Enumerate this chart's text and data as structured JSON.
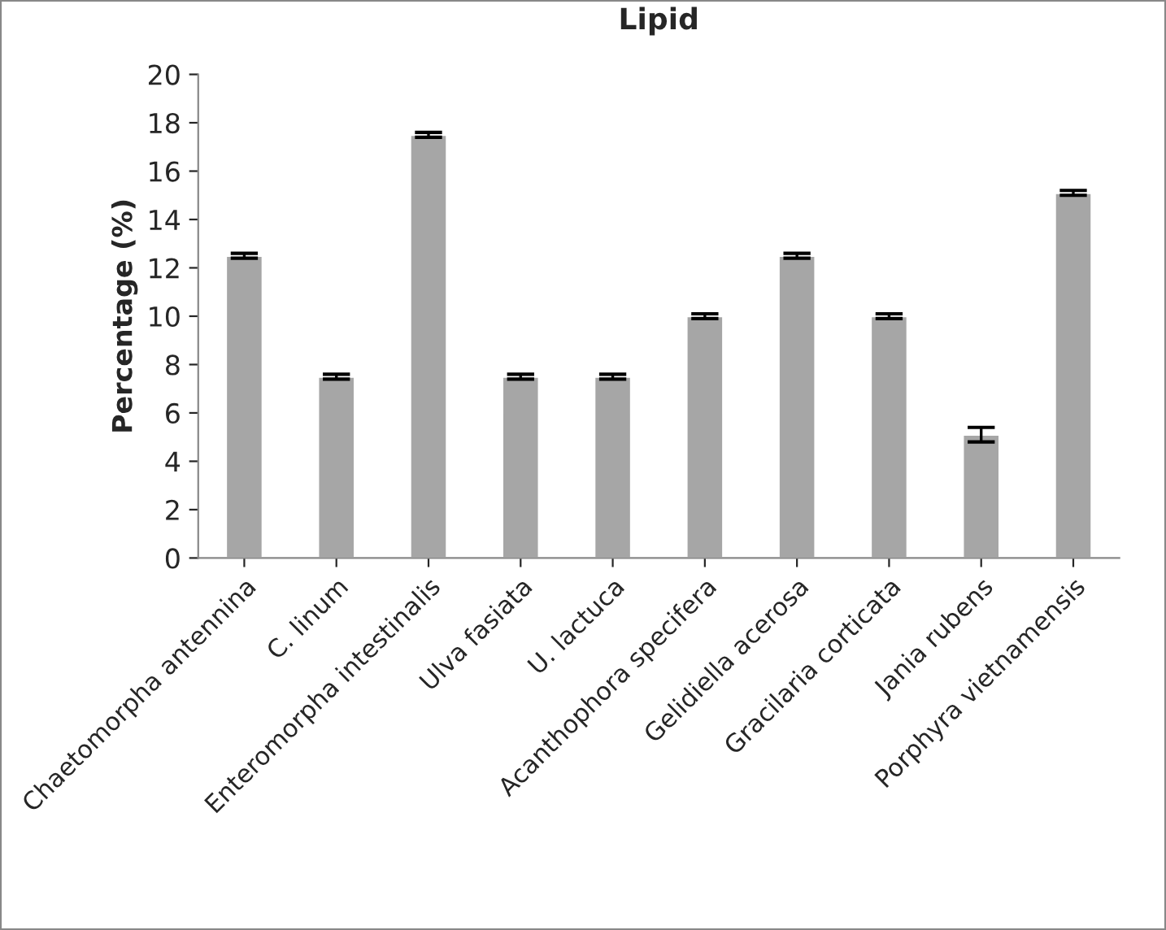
{
  "chart_data": {
    "type": "bar",
    "title": "Lipid",
    "ylabel": "Percentage (%)",
    "categories": [
      "Chaetomorpha antennina",
      "C. linum",
      "Enteromorpha intestinalis",
      "Ulva fasiata",
      "U. lactuca",
      "Acanthophora specifera",
      "Gelidiella acerosa",
      "Gracilaria corticata",
      "Jania rubens",
      "Porphyra vietnamensis"
    ],
    "values": [
      12.5,
      7.5,
      17.5,
      7.5,
      7.5,
      10,
      12.5,
      10,
      5.1,
      15.1
    ],
    "errors": [
      0.1,
      0.1,
      0.1,
      0.1,
      0.1,
      0.1,
      0.1,
      0.1,
      0.3,
      0.1
    ],
    "color": "#a6a6a6",
    "ylim": [
      0,
      20
    ],
    "yticks": [
      0,
      2,
      4,
      6,
      8,
      10,
      12,
      14,
      16,
      18,
      20
    ],
    "grid": false
  }
}
